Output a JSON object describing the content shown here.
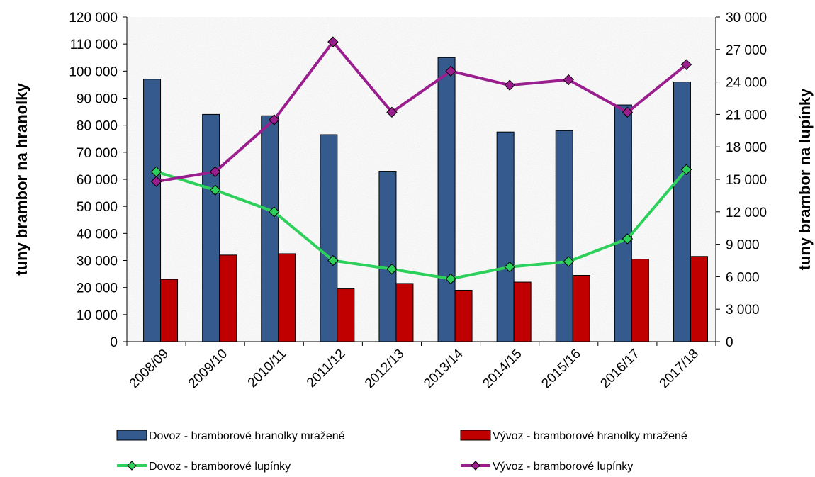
{
  "chart_data": {
    "type": "bar",
    "categories": [
      "2008/09",
      "2009/10",
      "2010/11",
      "2011/12",
      "2012/13",
      "2013/14",
      "2014/15",
      "2015/16",
      "2016/17",
      "2017/18"
    ],
    "ylabel": "tuny brambor na hranolky",
    "y2label": "tuny brambor na lupínky",
    "ylim": [
      0,
      120000
    ],
    "y2lim": [
      0,
      30000
    ],
    "yticks": [
      "0",
      "10 000",
      "20 000",
      "30 000",
      "40 000",
      "50 000",
      "60 000",
      "70 000",
      "80 000",
      "90 000",
      "100 000",
      "110 000",
      "120 000"
    ],
    "y2ticks": [
      "0",
      "3 000",
      "6 000",
      "9 000",
      "12 000",
      "15 000",
      "18 000",
      "21 000",
      "24 000",
      "27 000",
      "30 000"
    ],
    "grid": false,
    "legend_position": "bottom",
    "series": [
      {
        "name": "Dovoz - bramborové hranolky mražené",
        "type": "bar",
        "axis": "left",
        "color": "#355A8E",
        "values": [
          97000,
          84000,
          83500,
          76500,
          63000,
          105000,
          77500,
          78000,
          87500,
          96000
        ]
      },
      {
        "name": "Vývoz - bramborové hranolky mražené",
        "type": "bar",
        "axis": "left",
        "color": "#C00000",
        "values": [
          23000,
          32000,
          32500,
          19500,
          21500,
          19000,
          22000,
          24500,
          30500,
          31500
        ]
      },
      {
        "name": "Dovoz - bramborové lupínky",
        "type": "line",
        "axis": "right",
        "color": "#2DD05A",
        "values": [
          15700,
          14000,
          12000,
          7500,
          6700,
          5800,
          6900,
          7400,
          9500,
          15900
        ]
      },
      {
        "name": "Vývoz - bramborové lupínky",
        "type": "line",
        "axis": "right",
        "color": "#9A1E8E",
        "values": [
          14800,
          15700,
          20500,
          27700,
          21200,
          25000,
          23700,
          24200,
          21200,
          25600
        ]
      }
    ]
  }
}
